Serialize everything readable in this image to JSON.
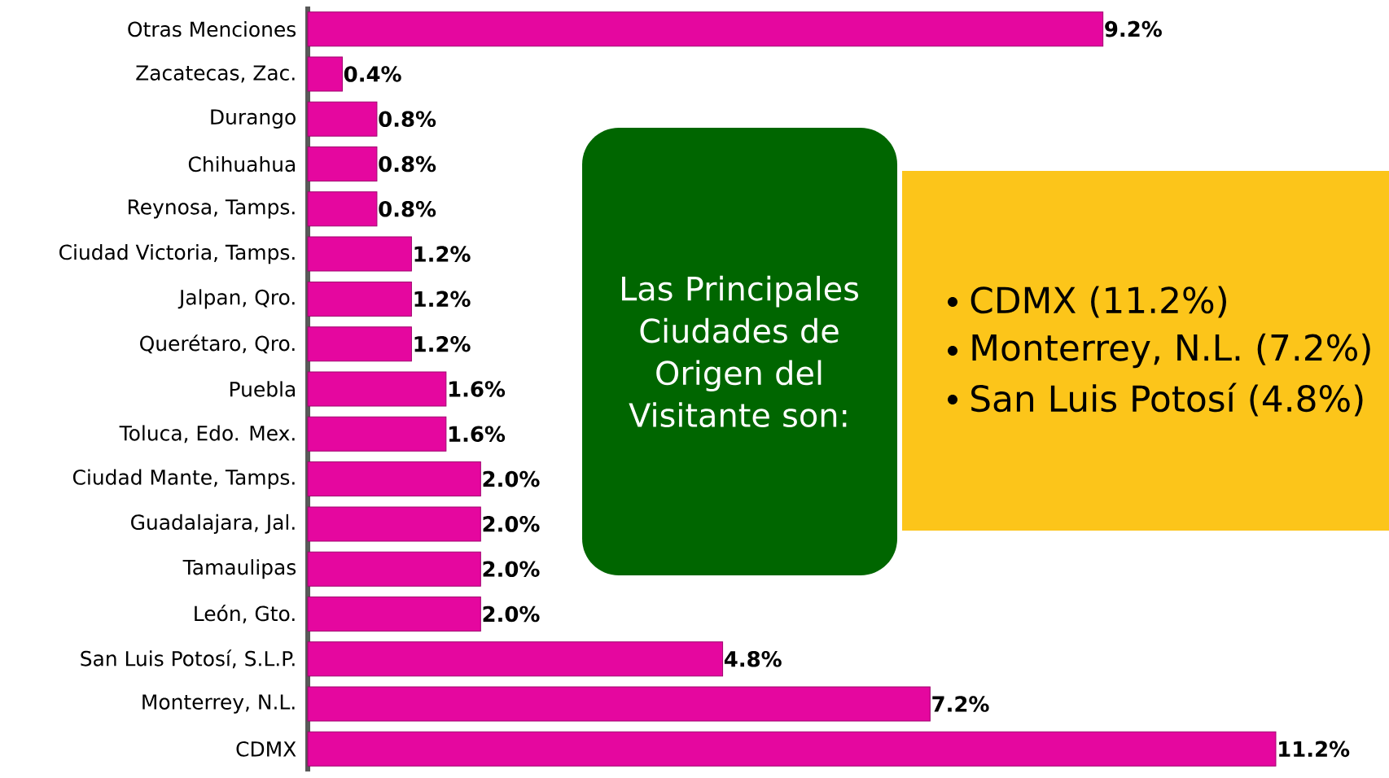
{
  "chart_data": {
    "type": "bar",
    "orientation": "horizontal",
    "color": "#e5079f",
    "categories": [
      "Otras Menciones",
      "Zacatecas, Zac.",
      "Durango",
      "Chihuahua",
      "Reynosa, Tamps.",
      "Ciudad Victoria, Tamps.",
      "Jalpan, Qro.",
      "Querétaro, Qro.",
      "Puebla",
      "Toluca, Edo. Mex.",
      "Ciudad Mante, Tamps.",
      "Guadalajara, Jal.",
      "Tamaulipas",
      "León, Gto.",
      "San Luis Potosí, S.L.P.",
      "Monterrey, N.L.",
      "CDMX"
    ],
    "values": [
      9.2,
      0.4,
      0.8,
      0.8,
      0.8,
      1.2,
      1.2,
      1.2,
      1.6,
      1.6,
      2.0,
      2.0,
      2.0,
      2.0,
      4.8,
      7.2,
      11.2
    ],
    "value_labels": [
      "9.2%",
      "0.4%",
      "0.8%",
      "0.8%",
      "0.8%",
      "1.2%",
      "1.2%",
      "1.2%",
      "1.6%",
      "1.6%",
      "2.0%",
      "2.0%",
      "2.0%",
      "2.0%",
      "4.8%",
      "7.2%",
      "11.2%"
    ],
    "annotations": [
      "Las Principales Ciudades de Origen del Visitante son:",
      "CDMX (11.2%)",
      "Monterrey, N.L. (7.2%)",
      "San Luis Potosí (4.8%)"
    ]
  }
}
